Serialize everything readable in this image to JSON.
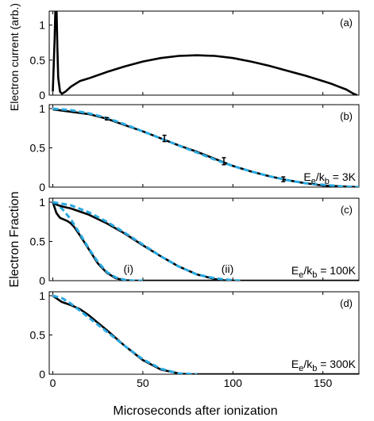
{
  "figure": {
    "xlabel": "Microseconds after ionization",
    "x_ticks": [
      "0",
      "50",
      "100",
      "150"
    ],
    "ylabel_top": "Electron current (arb.)",
    "ylabel_shared": "Electron Fraction",
    "colors": {
      "data": "#000000",
      "fit": "#29a9e1"
    }
  },
  "chart_data": [
    {
      "type": "line",
      "panel": "(a)",
      "xlim": [
        -2,
        170
      ],
      "ylim": [
        0,
        1.2
      ],
      "y_ticks": [
        "0",
        "0.5",
        "1"
      ],
      "series": [
        {
          "x": [
            0,
            1,
            1.5,
            2,
            2.5,
            3,
            4,
            5,
            7,
            10,
            15,
            20,
            30,
            40,
            50,
            60,
            70,
            80,
            90,
            100,
            110,
            120,
            130,
            140,
            150,
            155,
            160,
            163,
            165,
            167,
            169
          ],
          "y": [
            0.05,
            0.8,
            1.3,
            1.3,
            0.7,
            0.25,
            0.05,
            0.02,
            0.05,
            0.12,
            0.2,
            0.24,
            0.33,
            0.41,
            0.48,
            0.53,
            0.56,
            0.57,
            0.56,
            0.53,
            0.48,
            0.42,
            0.35,
            0.28,
            0.2,
            0.16,
            0.11,
            0.08,
            0.05,
            0.02,
            0.0
          ]
        }
      ]
    },
    {
      "type": "line",
      "panel": "(b)",
      "annotation": "E_e/k_b = 3K",
      "xlim": [
        -2,
        170
      ],
      "ylim": [
        0,
        1.05
      ],
      "y_ticks": [
        "0",
        "0.5",
        "1"
      ],
      "series": [
        {
          "style": "solid",
          "x": [
            0,
            10,
            20,
            30,
            40,
            50,
            60,
            70,
            80,
            90,
            100,
            110,
            120,
            130,
            140,
            150,
            160,
            170
          ],
          "y": [
            0.99,
            0.96,
            0.93,
            0.87,
            0.79,
            0.71,
            0.62,
            0.53,
            0.45,
            0.36,
            0.27,
            0.2,
            0.14,
            0.09,
            0.05,
            0.02,
            0.01,
            0.0
          ]
        },
        {
          "style": "dashed",
          "x": [
            0,
            10,
            20,
            30,
            40,
            50,
            60,
            70,
            80,
            90,
            100,
            110,
            120,
            130,
            140,
            150,
            160,
            170
          ],
          "y": [
            1.0,
            0.98,
            0.94,
            0.88,
            0.8,
            0.71,
            0.62,
            0.53,
            0.44,
            0.35,
            0.27,
            0.2,
            0.14,
            0.09,
            0.05,
            0.03,
            0.01,
            0.0
          ]
        }
      ],
      "error_bars": {
        "x": [
          30,
          62,
          95,
          128
        ],
        "y": [
          0.87,
          0.62,
          0.33,
          0.1
        ],
        "err": [
          0.015,
          0.04,
          0.045,
          0.03
        ]
      }
    },
    {
      "type": "line",
      "panel": "(c)",
      "annotation": "E_e/k_b = 100K",
      "curve_labels": [
        {
          "text": "(i)",
          "x": 42,
          "y": 0.1
        },
        {
          "text": "(ii)",
          "x": 97,
          "y": 0.1
        }
      ],
      "xlim": [
        -2,
        170
      ],
      "ylim": [
        0,
        1.05
      ],
      "y_ticks": [
        "0",
        "0.5",
        "1"
      ],
      "series": [
        {
          "style": "solid",
          "x": [
            0,
            2,
            4,
            6,
            8,
            10,
            12,
            15,
            20,
            25,
            30,
            35,
            40,
            45,
            50,
            170
          ],
          "y": [
            1.0,
            0.86,
            0.8,
            0.78,
            0.76,
            0.73,
            0.68,
            0.58,
            0.4,
            0.22,
            0.1,
            0.03,
            0.005,
            0.0,
            0.0,
            0.0
          ]
        },
        {
          "style": "dashed",
          "x": [
            0,
            5,
            10,
            15,
            20,
            25,
            30,
            35,
            40,
            45,
            50
          ],
          "y": [
            1.0,
            0.92,
            0.78,
            0.6,
            0.41,
            0.24,
            0.11,
            0.04,
            0.01,
            0.0,
            0.0
          ]
        },
        {
          "style": "solid",
          "x": [
            0,
            3,
            6,
            10,
            20,
            30,
            40,
            50,
            60,
            70,
            80,
            90,
            95,
            100
          ],
          "y": [
            1.0,
            0.96,
            0.94,
            0.92,
            0.84,
            0.73,
            0.6,
            0.45,
            0.31,
            0.18,
            0.08,
            0.02,
            0.005,
            0.0
          ]
        },
        {
          "style": "dashed",
          "x": [
            0,
            10,
            20,
            30,
            40,
            50,
            60,
            70,
            80,
            90,
            100,
            105
          ],
          "y": [
            1.0,
            0.96,
            0.87,
            0.75,
            0.61,
            0.46,
            0.31,
            0.18,
            0.08,
            0.03,
            0.005,
            0.0
          ]
        }
      ]
    },
    {
      "type": "line",
      "panel": "(d)",
      "annotation": "E_e/k_b = 300K",
      "xlim": [
        -2,
        170
      ],
      "ylim": [
        0,
        1.05
      ],
      "y_ticks": [
        "0",
        "0.5",
        "1"
      ],
      "series": [
        {
          "style": "solid",
          "x": [
            0,
            5,
            10,
            15,
            20,
            30,
            40,
            50,
            60,
            70,
            75,
            80,
            170
          ],
          "y": [
            1.0,
            0.92,
            0.88,
            0.83,
            0.75,
            0.56,
            0.36,
            0.18,
            0.06,
            0.01,
            0.0,
            0.0,
            0.0
          ]
        },
        {
          "style": "dashed",
          "x": [
            0,
            5,
            10,
            15,
            20,
            30,
            40,
            50,
            60,
            70,
            80
          ],
          "y": [
            1.0,
            0.97,
            0.9,
            0.81,
            0.72,
            0.54,
            0.36,
            0.19,
            0.07,
            0.01,
            0.0
          ]
        }
      ]
    }
  ]
}
